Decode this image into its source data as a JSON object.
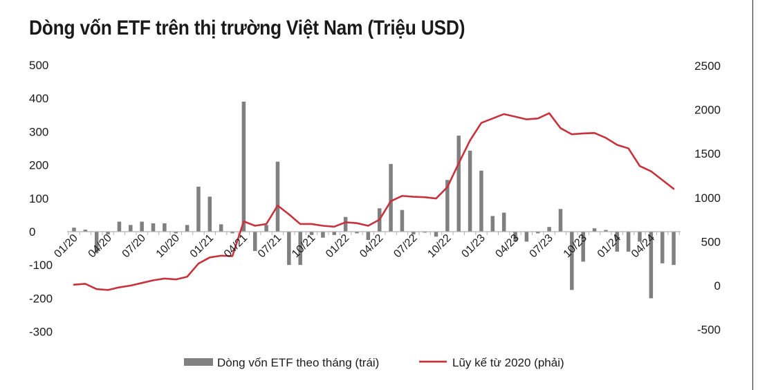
{
  "chart_data": {
    "type": "bar+line",
    "title": "Dòng vốn ETF trên thị trường Việt Nam (Triệu USD)",
    "x": [
      "01/20",
      "02/20",
      "03/20",
      "04/20",
      "05/20",
      "06/20",
      "07/20",
      "08/20",
      "09/20",
      "10/20",
      "11/20",
      "12/20",
      "01/21",
      "02/21",
      "03/21",
      "04/21",
      "05/21",
      "06/21",
      "07/21",
      "08/21",
      "09/21",
      "10/21",
      "11/21",
      "12/21",
      "01/22",
      "02/22",
      "03/22",
      "04/22",
      "05/22",
      "06/22",
      "07/22",
      "08/22",
      "09/22",
      "10/22",
      "11/22",
      "12/22",
      "01/23",
      "02/23",
      "03/23",
      "04/23",
      "05/23",
      "06/23",
      "07/23",
      "08/23",
      "09/23",
      "10/23",
      "11/23",
      "12/23",
      "01/24",
      "02/24",
      "03/24",
      "04/24",
      "05/24",
      "06/24"
    ],
    "x_tick_labels": [
      "01/20",
      "04/20",
      "07/20",
      "10/20",
      "01/21",
      "04/21",
      "07/21",
      "10/21",
      "01/22",
      "04/22",
      "07/22",
      "10/22",
      "01/23",
      "04/23",
      "07/23",
      "10/23",
      "01/24",
      "04/24"
    ],
    "series": [
      {
        "name": "Dòng vốn ETF theo tháng (trái)",
        "type": "bar",
        "axis": "left",
        "color": "#808080",
        "values": [
          12,
          6,
          -65,
          -8,
          30,
          20,
          30,
          25,
          25,
          -5,
          20,
          135,
          105,
          22,
          -5,
          390,
          -58,
          20,
          210,
          -100,
          -100,
          -10,
          -18,
          -10,
          44,
          -5,
          -25,
          70,
          203,
          65,
          -8,
          -3,
          -15,
          155,
          288,
          243,
          183,
          47,
          57,
          -30,
          -30,
          -5,
          14,
          68,
          -175,
          -90,
          10,
          5,
          -60,
          -60,
          -30,
          -200,
          -95,
          -100
        ]
      },
      {
        "name": "Lũy kế từ 2020 (phải)",
        "type": "line",
        "axis": "right",
        "color": "#c8323c",
        "values": [
          10,
          20,
          -40,
          -50,
          -20,
          0,
          30,
          60,
          80,
          70,
          100,
          250,
          320,
          340,
          335,
          730,
          680,
          700,
          910,
          810,
          700,
          700,
          680,
          670,
          720,
          710,
          680,
          750,
          960,
          1020,
          1010,
          1005,
          990,
          1120,
          1390,
          1650,
          1850,
          1900,
          1950,
          1920,
          1890,
          1900,
          1960,
          1790,
          1720,
          1730,
          1735,
          1680,
          1600,
          1560,
          1360,
          1300,
          1200,
          1100
        ]
      }
    ],
    "y_left": {
      "ticks": [
        "500",
        "400",
        "300",
        "200",
        "100",
        "0",
        "-100",
        "-200",
        "-300"
      ],
      "ylim": [
        -300,
        500
      ]
    },
    "y_right": {
      "ticks": [
        "2500",
        "2000",
        "1500",
        "1000",
        "500",
        "0",
        "-500"
      ],
      "ylim": [
        -500,
        2500
      ]
    },
    "grid": false,
    "legend": {
      "placement": "bottom-center",
      "entries": [
        "Dòng vốn ETF theo tháng (trái)",
        "Lũy kế từ 2020 (phải)"
      ]
    }
  }
}
